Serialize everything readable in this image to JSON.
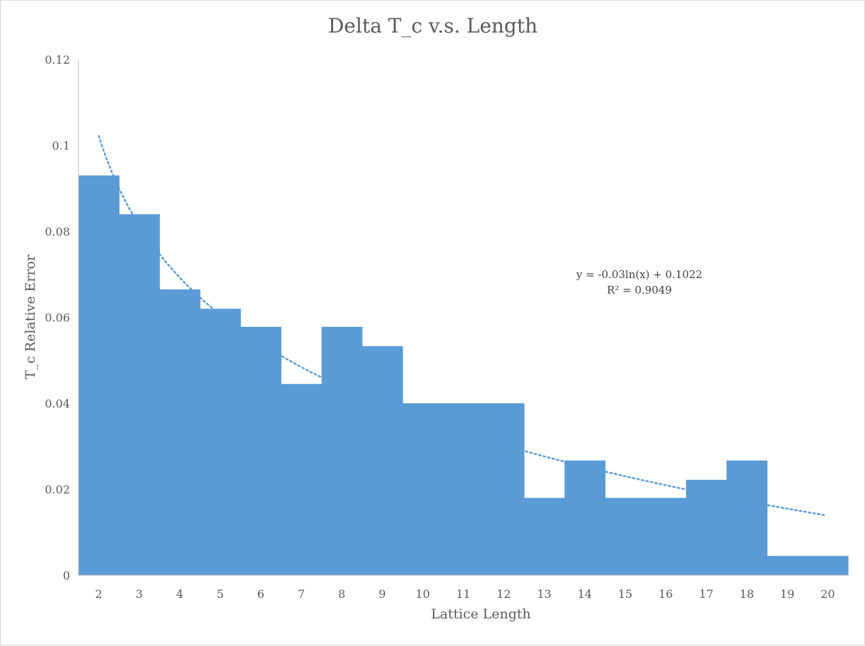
{
  "chart_data": {
    "type": "bar",
    "title": "Delta T_c v.s. Length",
    "xlabel": "Lattice Length",
    "ylabel": "T_c Relative Error",
    "categories": [
      "2",
      "3",
      "4",
      "5",
      "6",
      "7",
      "8",
      "9",
      "10",
      "11",
      "12",
      "13",
      "14",
      "15",
      "16",
      "17",
      "18",
      "19",
      "20"
    ],
    "series": [
      {
        "values": [
          0.093,
          0.084,
          0.0665,
          0.062,
          0.0578,
          0.0445,
          0.0578,
          0.0533,
          0.04,
          0.04,
          0.04,
          0.018,
          0.0267,
          0.018,
          0.018,
          0.0222,
          0.0267,
          0.0045,
          0.0045
        ],
        "color": "#5b9bd5"
      }
    ],
    "ylim": [
      0,
      0.12
    ],
    "yticks": [
      "0",
      "0.02",
      "0.04",
      "0.06",
      "0.08",
      "0.1",
      "0.12"
    ],
    "gap_width": 0,
    "trendline": {
      "type": "logarithmic",
      "a": -0.03,
      "b": 0.1022,
      "equation": "y = -0.03ln(x) + 0.1022",
      "r2": "R² = 0.9049",
      "color": "#5b9bd5",
      "style": "dotted"
    },
    "grid": false,
    "legend": "none"
  }
}
